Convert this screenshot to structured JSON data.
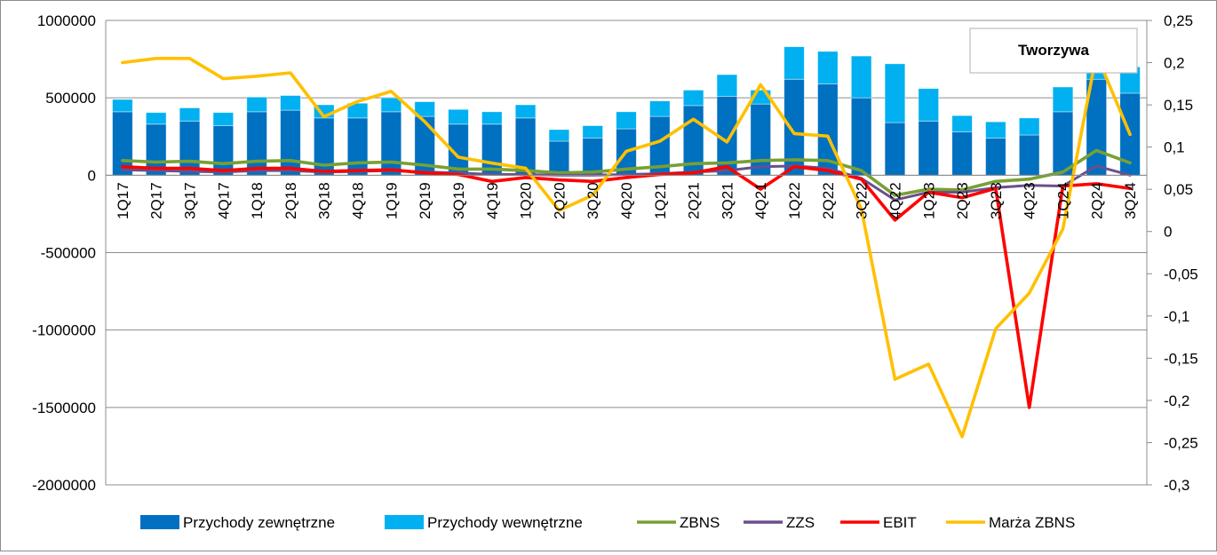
{
  "chart_data": {
    "type": "bar",
    "title": "Tworzywa",
    "categories": [
      "1Q17",
      "2Q17",
      "3Q17",
      "4Q17",
      "1Q18",
      "2Q18",
      "3Q18",
      "4Q18",
      "1Q19",
      "2Q19",
      "3Q19",
      "4Q19",
      "1Q20",
      "2Q20",
      "3Q20",
      "4Q20",
      "1Q21",
      "2Q21",
      "3Q21",
      "4Q21",
      "1Q22",
      "2Q22",
      "3Q22",
      "4Q22",
      "1Q23",
      "2Q23",
      "3Q23",
      "4Q23",
      "1Q24",
      "2Q24",
      "3Q24"
    ],
    "y_left": {
      "min": -2000000,
      "max": 1000000,
      "step": 500000,
      "tick_labels": [
        "1000000",
        "500000",
        "0",
        "-500000",
        "-1000000",
        "-1500000",
        "-2000000"
      ]
    },
    "y_right": {
      "min": -0.3,
      "max": 0.25,
      "step": 0.05,
      "tick_labels": [
        "0,25",
        "0,2",
        "0,15",
        "0,1",
        "0,05",
        "0",
        "-0,05",
        "-0,1",
        "-0,15",
        "-0,2",
        "-0,25",
        "-0,3"
      ]
    },
    "grid": true,
    "legend_position": "bottom",
    "series": [
      {
        "name": "Przychody zewnętrzne",
        "kind": "bar",
        "stack": "a",
        "axis": "left",
        "color": "#0070C0",
        "values": [
          410000,
          330000,
          350000,
          320000,
          410000,
          420000,
          370000,
          370000,
          410000,
          380000,
          330000,
          330000,
          370000,
          220000,
          240000,
          300000,
          380000,
          450000,
          510000,
          460000,
          620000,
          590000,
          500000,
          340000,
          350000,
          280000,
          240000,
          260000,
          410000,
          620000,
          530000
        ]
      },
      {
        "name": "Przychody wewnętrzne",
        "kind": "bar",
        "stack": "a",
        "axis": "left",
        "color": "#00B0F0",
        "values": [
          80000,
          75000,
          85000,
          85000,
          95000,
          95000,
          85000,
          95000,
          90000,
          95000,
          95000,
          80000,
          85000,
          75000,
          80000,
          110000,
          100000,
          100000,
          140000,
          90000,
          210000,
          210000,
          270000,
          380000,
          210000,
          105000,
          105000,
          110000,
          160000,
          145000,
          170000
        ]
      },
      {
        "name": "ZBNS",
        "kind": "line",
        "axis": "left",
        "color": "#77A033",
        "values": [
          95000,
          85000,
          90000,
          75000,
          90000,
          95000,
          65000,
          80000,
          85000,
          65000,
          40000,
          40000,
          30000,
          15000,
          20000,
          40000,
          55000,
          75000,
          80000,
          95000,
          100000,
          95000,
          30000,
          -130000,
          -90000,
          -95000,
          -40000,
          -25000,
          20000,
          160000,
          80000
        ]
      },
      {
        "name": "ZZS",
        "kind": "line",
        "axis": "left",
        "color": "#6A4F8C",
        "values": [
          35000,
          30000,
          25000,
          20000,
          30000,
          30000,
          20000,
          25000,
          30000,
          20000,
          15000,
          5000,
          5000,
          0,
          0,
          5000,
          10000,
          20000,
          30000,
          55000,
          60000,
          45000,
          -20000,
          -160000,
          -110000,
          -110000,
          -80000,
          -65000,
          -70000,
          60000,
          0
        ]
      },
      {
        "name": "EBIT",
        "kind": "line",
        "axis": "left",
        "color": "#FF0000",
        "values": [
          55000,
          45000,
          45000,
          30000,
          45000,
          45000,
          25000,
          30000,
          35000,
          15000,
          5000,
          -40000,
          -15000,
          -30000,
          -40000,
          -15000,
          5000,
          15000,
          55000,
          -90000,
          55000,
          30000,
          -25000,
          -290000,
          -110000,
          -145000,
          -85000,
          -1500000,
          -70000,
          -55000,
          -85000
        ]
      },
      {
        "name": "Marża ZBNS",
        "kind": "line",
        "axis": "right",
        "color": "#FFC000",
        "values": [
          0.2,
          0.205,
          0.205,
          0.181,
          0.184,
          0.188,
          0.136,
          0.154,
          0.166,
          0.13,
          0.088,
          0.081,
          0.075,
          0.025,
          0.043,
          0.095,
          0.107,
          0.133,
          0.106,
          0.174,
          0.116,
          0.113,
          0.027,
          -0.175,
          -0.157,
          -0.243,
          -0.115,
          -0.073,
          0.003,
          0.21,
          0.115
        ]
      }
    ]
  }
}
